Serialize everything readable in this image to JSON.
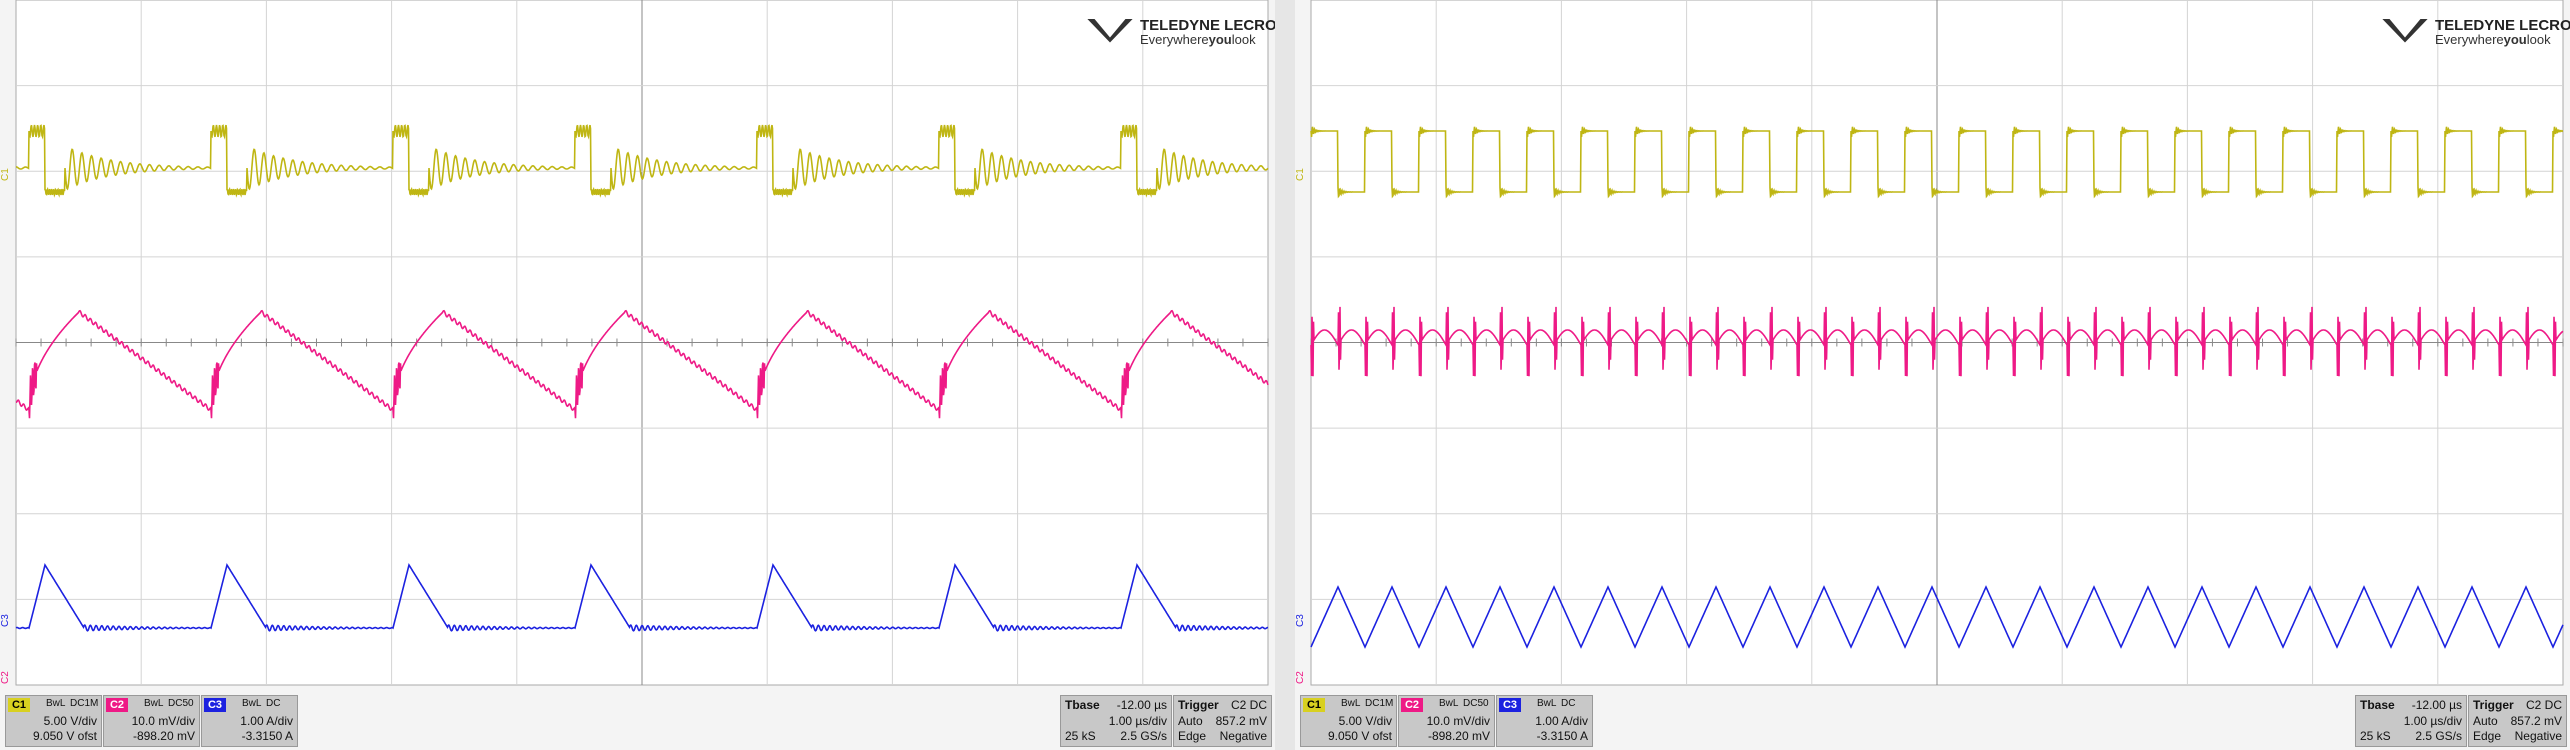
{
  "panels": [
    {
      "logo": {
        "brand": "TELEDYNE LECROY",
        "tagline": [
          "Everywhere",
          "you",
          "look"
        ]
      },
      "markers": [
        "C1",
        "C2",
        "C3"
      ],
      "channels": [
        {
          "id": "C1",
          "bw": "BwL",
          "coupling": "DC1M",
          "scale": "5.00 V/div",
          "offset": "9.050 V ofst"
        },
        {
          "id": "C2",
          "bw": "BwL",
          "coupling": "DC50",
          "scale": "10.0 mV/div",
          "offset": "-898.20 mV"
        },
        {
          "id": "C3",
          "bw": "BwL",
          "coupling": "DC",
          "scale": "1.00 A/div",
          "offset": "-3.3150 A"
        }
      ],
      "timebase": {
        "label": "Tbase",
        "delay": "-12.00 µs",
        "scale": "1.00 µs/div",
        "samples": "25 kS",
        "rate": "2.5 GS/s"
      },
      "trigger": {
        "label": "Trigger",
        "source": "C2 DC",
        "mode": "Auto",
        "level": "857.2 mV",
        "type": "Edge",
        "slope": "Negative"
      }
    },
    {
      "logo": {
        "brand": "TELEDYNE LECROY",
        "tagline": [
          "Everywhere",
          "you",
          "look"
        ]
      },
      "markers": [
        "C1",
        "C2",
        "C3"
      ],
      "channels": [
        {
          "id": "C1",
          "bw": "BwL",
          "coupling": "DC1M",
          "scale": "5.00 V/div",
          "offset": "9.050 V ofst"
        },
        {
          "id": "C2",
          "bw": "BwL",
          "coupling": "DC50",
          "scale": "10.0 mV/div",
          "offset": "-898.20 mV"
        },
        {
          "id": "C3",
          "bw": "BwL",
          "coupling": "DC",
          "scale": "1.00 A/div",
          "offset": "-3.3150 A"
        }
      ],
      "timebase": {
        "label": "Tbase",
        "delay": "-12.00 µs",
        "scale": "1.00 µs/div",
        "samples": "25 kS",
        "rate": "2.5 GS/s"
      },
      "trigger": {
        "label": "Trigger",
        "source": "C2 DC",
        "mode": "Auto",
        "level": "857.2 mV",
        "type": "Edge",
        "slope": "Negative"
      }
    }
  ]
}
